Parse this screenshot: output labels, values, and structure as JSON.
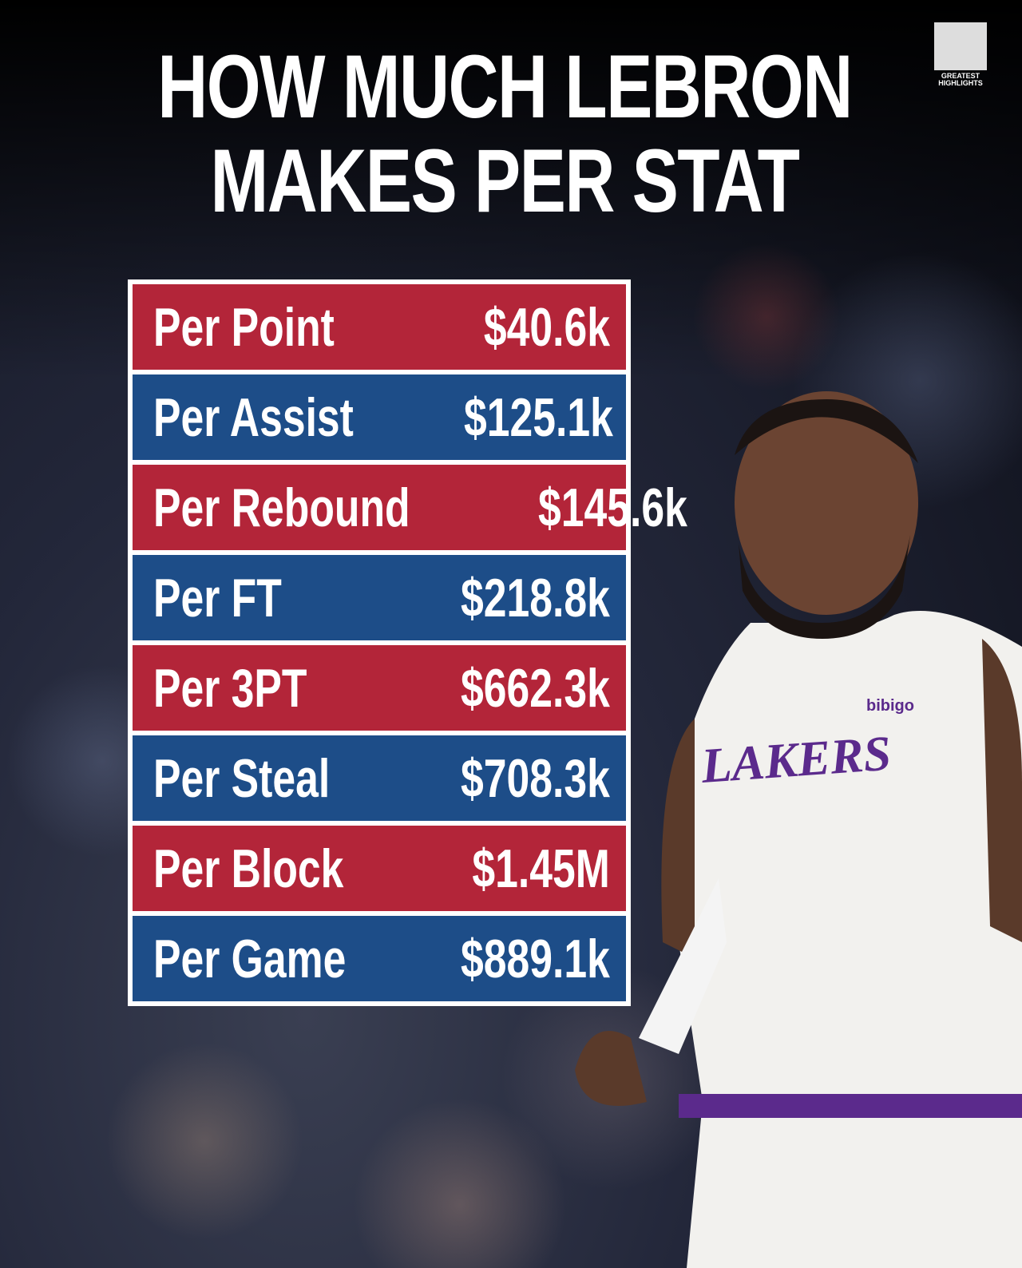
{
  "header": {
    "title_lines": [
      "HOW MUCH LEBRON",
      "MAKES PER STAT"
    ]
  },
  "logo": {
    "lines": [
      "GREATEST",
      "HIGHLIGHTS"
    ]
  },
  "table": {
    "rows": [
      [
        "Per Point",
        "$40.6k"
      ],
      [
        "Per Assist",
        "$125.1k"
      ],
      [
        "Per Rebound",
        "$145.6k"
      ],
      [
        "Per FT",
        "$218.8k"
      ],
      [
        "Per 3PT",
        "$662.3k"
      ],
      [
        "Per Steal",
        "$708.3k"
      ],
      [
        "Per Block",
        "$1.45M"
      ],
      [
        "Per Game",
        "$889.1k"
      ]
    ]
  },
  "jersey": {
    "sponsor": "bibigo",
    "team": "LAKERS"
  }
}
